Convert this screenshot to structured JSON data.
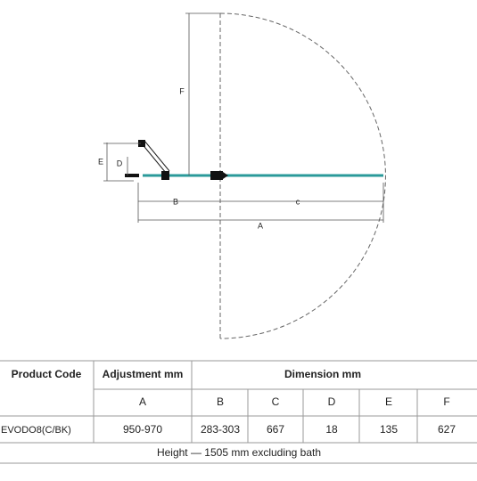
{
  "diagram": {
    "dimension_labels": [
      "F",
      "E",
      "D",
      "B",
      "c",
      "A"
    ]
  },
  "table": {
    "headers": [
      "Product Code",
      "Adjustment mm",
      "Dimension mm"
    ],
    "subheaders": [
      "A",
      "B",
      "C",
      "D",
      "E",
      "F"
    ],
    "rows": [
      [
        "EVODO8(C/BK)",
        "950-970",
        "283-303",
        "667",
        "18",
        "135",
        "627"
      ]
    ],
    "footer": "Height — 1505 mm excluding bath"
  }
}
